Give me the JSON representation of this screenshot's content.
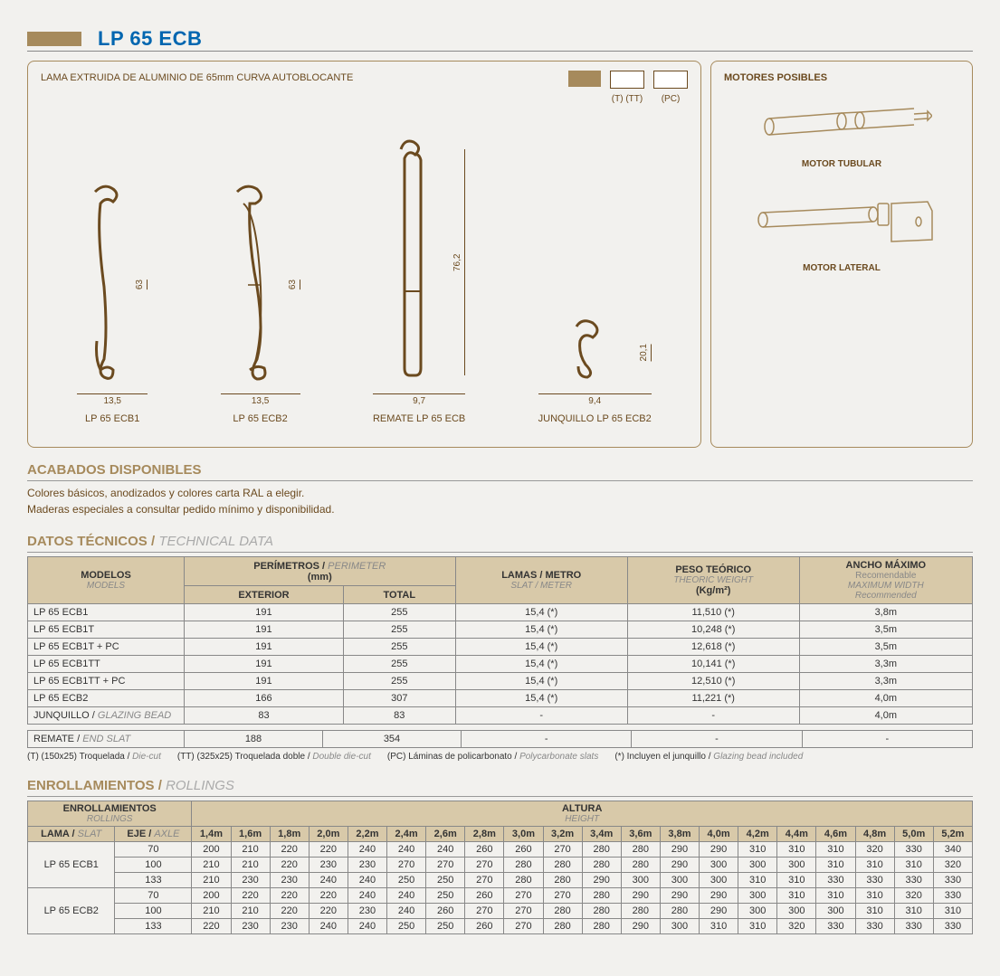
{
  "title": "LP 65 ECB",
  "colors": {
    "accent": "#a68a5c",
    "brown": "#6b4a1f",
    "blue": "#0066b0",
    "headerBg": "#d8c9a9"
  },
  "diagram": {
    "heading": "LAMA EXTRUIDA DE ALUMINIO DE 65mm CURVA AUTOBLOCANTE",
    "swatches": [
      {
        "label": "",
        "type": "solid"
      },
      {
        "label": "(T) (TT)",
        "type": "outline"
      },
      {
        "label": "(PC)",
        "type": "outline"
      }
    ],
    "profiles": [
      {
        "name": "LP 65 ECB1",
        "width": "13,5",
        "height": "63"
      },
      {
        "name": "LP 65 ECB2",
        "width": "13,5",
        "height": "63"
      },
      {
        "name": "REMATE LP 65 ECB",
        "width": "9,7",
        "height": "76,2"
      },
      {
        "name": "JUNQUILLO LP 65 ECB2",
        "width": "9,4",
        "height": "20,1"
      }
    ]
  },
  "motors": {
    "heading": "MOTORES POSIBLES",
    "items": [
      {
        "label": "MOTOR TUBULAR"
      },
      {
        "label": "MOTOR LATERAL"
      }
    ]
  },
  "acabados": {
    "heading": "ACABADOS DISPONIBLES",
    "line1": "Colores básicos, anodizados y colores carta RAL a elegir.",
    "line2": "Maderas especiales a consultar pedido mínimo y disponibilidad."
  },
  "technical": {
    "heading": "DATOS TÉCNICOS",
    "headingSub": "TECHNICAL DATA",
    "headers": {
      "models": "MODELOS",
      "modelsSub": "MODELS",
      "perimeter": "PERÍMETROS",
      "perimeterSub": "PERIMETER",
      "perimeterUnit": "(mm)",
      "exterior": "EXTERIOR",
      "total": "TOTAL",
      "lamas": "LAMAS / METRO",
      "lamasSub": "SLAT / METER",
      "peso": "PESO TEÓRICO",
      "pesoSub": "THEORIC WEIGHT",
      "pesoUnit": "(Kg/m²)",
      "ancho": "ANCHO MÁXIMO",
      "anchoSub1": "Recomendable",
      "anchoSub2": "MAXIMUM WIDTH",
      "anchoSub3": "Recommended"
    },
    "rows": [
      {
        "model": "LP 65 ECB1",
        "ext": "191",
        "tot": "255",
        "lamas": "15,4 (*)",
        "peso": "11,510 (*)",
        "ancho": "3,8m"
      },
      {
        "model": "LP 65 ECB1T",
        "ext": "191",
        "tot": "255",
        "lamas": "15,4 (*)",
        "peso": "10,248 (*)",
        "ancho": "3,5m"
      },
      {
        "model": "LP 65 ECB1T + PC",
        "ext": "191",
        "tot": "255",
        "lamas": "15,4 (*)",
        "peso": "12,618 (*)",
        "ancho": "3,5m"
      },
      {
        "model": "LP 65 ECB1TT",
        "ext": "191",
        "tot": "255",
        "lamas": "15,4 (*)",
        "peso": "10,141 (*)",
        "ancho": "3,3m"
      },
      {
        "model": "LP 65 ECB1TT + PC",
        "ext": "191",
        "tot": "255",
        "lamas": "15,4 (*)",
        "peso": "12,510 (*)",
        "ancho": "3,3m"
      },
      {
        "model": "LP 65 ECB2",
        "ext": "166",
        "tot": "307",
        "lamas": "15,4 (*)",
        "peso": "11,221 (*)",
        "ancho": "4,0m"
      },
      {
        "model": "JUNQUILLO",
        "modelSub": "GLAZING BEAD",
        "ext": "83",
        "tot": "83",
        "lamas": "-",
        "peso": "-",
        "ancho": "4,0m"
      }
    ],
    "rowRemate": {
      "model": "REMATE",
      "modelSub": "END SLAT",
      "ext": "188",
      "tot": "354",
      "lamas": "-",
      "peso": "-",
      "ancho": "-"
    },
    "footnotes": [
      {
        "main": "(T) (150x25) Troquelada",
        "sub": "Die-cut"
      },
      {
        "main": "(TT) (325x25) Troquelada doble",
        "sub": "Double die-cut"
      },
      {
        "main": "(PC) Láminas de policarbonato",
        "sub": "Polycarbonate slats"
      },
      {
        "main": "(*) Incluyen el junquillo",
        "sub": "Glazing bead included"
      }
    ]
  },
  "rollings": {
    "heading": "ENROLLAMIENTOS",
    "headingSub": "ROLLINGS",
    "colHeaders": {
      "enroll": "ENROLLAMIENTOS",
      "enrollSub": "ROLLINGS",
      "altura": "ALTURA",
      "alturaSub": "HEIGHT",
      "lama": "LAMA",
      "lamaSub": "SLAT",
      "eje": "EJE",
      "ejeSub": "AXLE"
    },
    "heights": [
      "1,4m",
      "1,6m",
      "1,8m",
      "2,0m",
      "2,2m",
      "2,4m",
      "2,6m",
      "2,8m",
      "3,0m",
      "3,2m",
      "3,4m",
      "3,6m",
      "3,8m",
      "4,0m",
      "4,2m",
      "4,4m",
      "4,6m",
      "4,8m",
      "5,0m",
      "5,2m"
    ],
    "groups": [
      {
        "lama": "LP 65 ECB1",
        "rows": [
          {
            "eje": "70",
            "vals": [
              "200",
              "210",
              "220",
              "220",
              "240",
              "240",
              "240",
              "260",
              "260",
              "270",
              "280",
              "280",
              "290",
              "290",
              "310",
              "310",
              "310",
              "320",
              "330",
              "340"
            ]
          },
          {
            "eje": "100",
            "vals": [
              "210",
              "210",
              "220",
              "230",
              "230",
              "270",
              "270",
              "270",
              "280",
              "280",
              "280",
              "280",
              "290",
              "300",
              "300",
              "300",
              "310",
              "310",
              "310",
              "320"
            ]
          },
          {
            "eje": "133",
            "vals": [
              "210",
              "230",
              "230",
              "240",
              "240",
              "250",
              "250",
              "270",
              "280",
              "280",
              "290",
              "300",
              "300",
              "300",
              "310",
              "310",
              "330",
              "330",
              "330",
              "330"
            ]
          }
        ]
      },
      {
        "lama": "LP 65 ECB2",
        "rows": [
          {
            "eje": "70",
            "vals": [
              "200",
              "220",
              "220",
              "220",
              "240",
              "240",
              "250",
              "260",
              "270",
              "270",
              "280",
              "290",
              "290",
              "290",
              "300",
              "310",
              "310",
              "310",
              "320",
              "330"
            ]
          },
          {
            "eje": "100",
            "vals": [
              "210",
              "210",
              "220",
              "220",
              "230",
              "240",
              "260",
              "270",
              "270",
              "280",
              "280",
              "280",
              "280",
              "290",
              "300",
              "300",
              "300",
              "310",
              "310",
              "310"
            ]
          },
          {
            "eje": "133",
            "vals": [
              "220",
              "230",
              "230",
              "240",
              "240",
              "250",
              "250",
              "260",
              "270",
              "280",
              "280",
              "290",
              "300",
              "310",
              "310",
              "320",
              "330",
              "330",
              "330",
              "330"
            ]
          }
        ]
      }
    ]
  }
}
